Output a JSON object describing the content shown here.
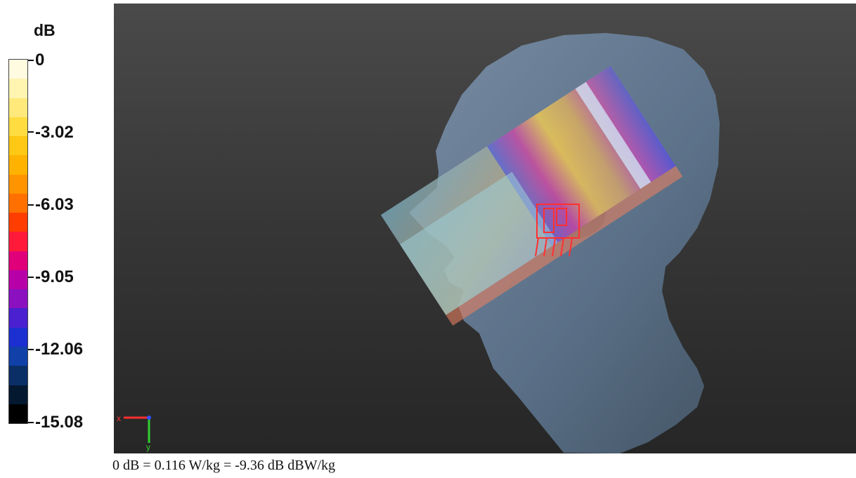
{
  "legend": {
    "unit": "dB",
    "ticks": [
      "0",
      "-3.02",
      "-6.03",
      "-9.05",
      "-12.06",
      "-15.08"
    ],
    "colors": [
      "#fffbe0",
      "#fff4b0",
      "#ffe97a",
      "#ffdc40",
      "#ffc814",
      "#ffb200",
      "#ff9400",
      "#ff7000",
      "#ff3d00",
      "#ff1a3a",
      "#e0007a",
      "#b800a8",
      "#8a10c0",
      "#4a20d0",
      "#1c2fd0",
      "#1040a8",
      "#0a2e66",
      "#041830",
      "#000000"
    ]
  },
  "viewport": {
    "axis_labels": {
      "x": "x",
      "y": "y"
    }
  },
  "caption": "0 dB = 0.116 W/kg = -9.36 dB dBW/kg"
}
